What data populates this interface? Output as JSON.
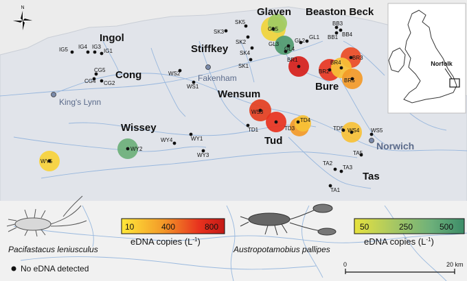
{
  "river_names": {
    "glaven": "Glaven",
    "beaston_beck": "Beaston Beck",
    "ingol": "Ingol",
    "stiffkey": "Stiffkey",
    "cong": "Cong",
    "wensum": "Wensum",
    "bure": "Bure",
    "wissey": "Wissey",
    "tud": "Tud",
    "tas": "Tas"
  },
  "towns": {
    "fakenham": "Fakenham",
    "kings_lynn": "King's Lynn",
    "norwich": "Norwich"
  },
  "compass": {
    "north": "N"
  },
  "inset": {
    "label": "Norfolk"
  },
  "scale": {
    "start": "0",
    "end": "20 km"
  },
  "legend_pl": {
    "ticks": [
      "10",
      "400",
      "800"
    ],
    "title": "eDNA copies (L",
    "sup": "-1",
    "close": ")",
    "gradient": [
      "#ffe83a",
      "#f39a28",
      "#e8321e",
      "#c41a16"
    ]
  },
  "legend_ap": {
    "ticks": [
      "50",
      "250",
      "500"
    ],
    "title": "eDNA copies (L",
    "sup": "-1",
    "close": ")",
    "gradient": [
      "#e7e23e",
      "#a9c862",
      "#6db07a",
      "#3c8c68"
    ]
  },
  "species": {
    "signal": "Pacifastacus leniusculus",
    "white_clawed": "Austropotamobius pallipes"
  },
  "no_detect": "No eDNA detected",
  "sites": [
    {
      "label": "SK5"
    },
    {
      "label": "SK3"
    },
    {
      "label": "SK2"
    },
    {
      "label": "SK4"
    },
    {
      "label": "SK1"
    },
    {
      "label": "GL5"
    },
    {
      "label": "GL1"
    },
    {
      "label": "GL2"
    },
    {
      "label": "GL3"
    },
    {
      "label": "GL4"
    },
    {
      "label": "BB3"
    },
    {
      "label": "BB1"
    },
    {
      "label": "BB4"
    },
    {
      "label": "BR1"
    },
    {
      "label": "BR2"
    },
    {
      "label": "BR3"
    },
    {
      "label": "BR4"
    },
    {
      "label": "BR5"
    },
    {
      "label": "IG5"
    },
    {
      "label": "IG4"
    },
    {
      "label": "IG3"
    },
    {
      "label": "IG1"
    },
    {
      "label": "CG5"
    },
    {
      "label": "CG4"
    },
    {
      "label": "CG2"
    },
    {
      "label": "WS2"
    },
    {
      "label": "WS1"
    },
    {
      "label": "WS3"
    },
    {
      "label": "WS4"
    },
    {
      "label": "WS5"
    },
    {
      "label": "TD1"
    },
    {
      "label": "TD3"
    },
    {
      "label": "TD4"
    },
    {
      "label": "TD5"
    },
    {
      "label": "WY1"
    },
    {
      "label": "WY2"
    },
    {
      "label": "WY3"
    },
    {
      "label": "WY4"
    },
    {
      "label": "WY5"
    },
    {
      "label": "TA1"
    },
    {
      "label": "TA2"
    },
    {
      "label": "TA3"
    },
    {
      "label": "TA5"
    }
  ]
}
